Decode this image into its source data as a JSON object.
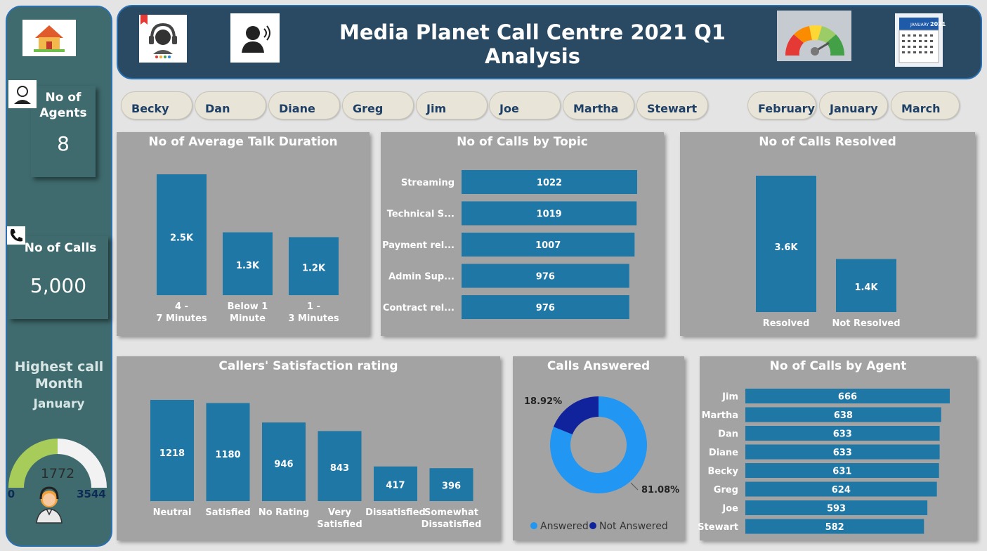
{
  "header": {
    "title": "Media Planet Call Centre 2021 Q1 Analysis",
    "calendar_label": "JANUARY",
    "calendar_year": "2021"
  },
  "sidebar": {
    "agents": {
      "title": "No of Agents",
      "value": "8"
    },
    "calls": {
      "title": "No of Calls",
      "value": "5,000"
    },
    "highest": {
      "title": "Highest call Month",
      "month": "January"
    },
    "gauge": {
      "value": 1772,
      "min": 0,
      "max": 3544,
      "value_label": "1772",
      "min_label": "0",
      "max_label": "3544",
      "fill_color": "#a8cc5a",
      "track_color": "#f2f2f2"
    }
  },
  "agent_slicer": [
    "Becky",
    "Dan",
    "Diane",
    "Greg",
    "Jim",
    "Joe",
    "Martha",
    "Stewart"
  ],
  "month_slicer": [
    "February",
    "January",
    "March"
  ],
  "colors": {
    "bar": "#1f77a6",
    "answered": "#2196f3",
    "not_answered": "#11239c"
  },
  "chart_data": [
    {
      "id": "talk_duration",
      "type": "bar",
      "title": "No of Average Talk Duration",
      "categories": [
        "4 - 7 Minutes",
        "Below 1 Minute",
        "1 - 3 Minutes"
      ],
      "values": [
        2500,
        1300,
        1200
      ],
      "labels": [
        "2.5K",
        "1.3K",
        "1.2K"
      ]
    },
    {
      "id": "calls_by_topic",
      "type": "bar",
      "orientation": "horizontal",
      "title": "No of Calls by Topic",
      "categories": [
        "Streaming",
        "Technical S...",
        "Payment rel...",
        "Admin Sup...",
        "Contract rel..."
      ],
      "values": [
        1022,
        1019,
        1007,
        976,
        976
      ]
    },
    {
      "id": "calls_resolved",
      "type": "bar",
      "title": "No of Calls Resolved",
      "categories": [
        "Resolved",
        "Not Resolved"
      ],
      "values": [
        3600,
        1400
      ],
      "labels": [
        "3.6K",
        "1.4K"
      ]
    },
    {
      "id": "satisfaction",
      "type": "bar",
      "title": "Callers' Satisfaction rating",
      "categories": [
        "Neutral",
        "Satisfied",
        "No Rating",
        "Very Satisfied",
        "Dissatisfied",
        "Somewhat Dissatisfied"
      ],
      "values": [
        1218,
        1180,
        946,
        843,
        417,
        396
      ]
    },
    {
      "id": "calls_answered",
      "type": "pie",
      "title": "Calls Answered",
      "categories": [
        "Answered",
        "Not Answered"
      ],
      "values": [
        81.08,
        18.92
      ],
      "labels": [
        "81.08%",
        "18.92%"
      ],
      "legend": "bottom"
    },
    {
      "id": "calls_by_agent",
      "type": "bar",
      "orientation": "horizontal",
      "title": "No of Calls by Agent",
      "categories": [
        "Jim",
        "Martha",
        "Dan",
        "Diane",
        "Becky",
        "Greg",
        "Joe",
        "Stewart"
      ],
      "values": [
        666,
        638,
        633,
        633,
        631,
        624,
        593,
        582
      ]
    }
  ]
}
